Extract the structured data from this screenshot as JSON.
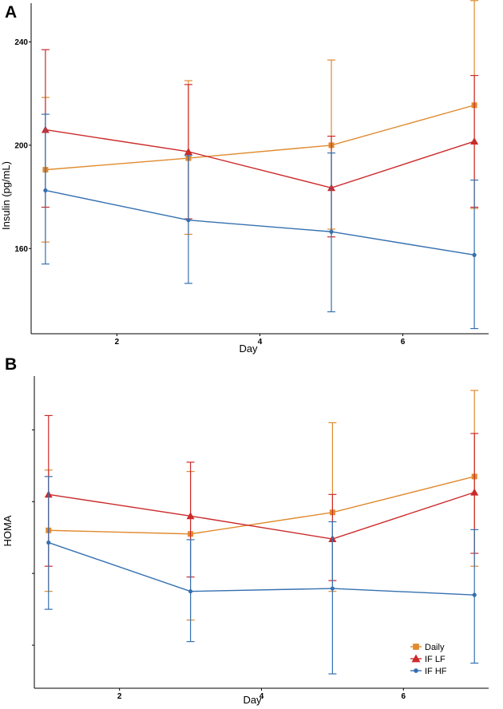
{
  "colors": {
    "Daily": "#e08a2e",
    "IF LF": "#cc2a2a",
    "IF HF": "#3570b0"
  },
  "chart_data": [
    {
      "type": "line",
      "panel_label": "A",
      "xlabel": "Day",
      "ylabel": "Insulin (pg/mL)",
      "xlim": [
        0.8,
        7.2
      ],
      "ylim": [
        127,
        255
      ],
      "xticks": [
        2,
        4,
        6
      ],
      "yticks": [
        160,
        200,
        240
      ],
      "show_ytick_labels": true,
      "legend": false,
      "x": [
        1,
        3,
        5,
        7
      ],
      "series": [
        {
          "name": "Daily",
          "marker": "square",
          "values": [
            190.5,
            195,
            200,
            215.5
          ],
          "err_low": [
            162.5,
            165.5,
            167.5,
            175.5
          ],
          "err_high": [
            218.5,
            225,
            233,
            256
          ]
        },
        {
          "name": "IF LF",
          "marker": "triangle",
          "values": [
            206,
            197.5,
            183.5,
            201.5
          ],
          "err_low": [
            176,
            171.5,
            164.5,
            176
          ],
          "err_high": [
            237,
            223.5,
            203.5,
            227
          ]
        },
        {
          "name": "IF HF",
          "marker": "circle",
          "values": [
            182.5,
            171,
            166.5,
            157.5
          ],
          "err_low": [
            154,
            146.5,
            135.5,
            129
          ],
          "err_high": [
            212,
            196,
            197,
            186.5
          ]
        }
      ]
    },
    {
      "type": "line",
      "panel_label": "B",
      "xlabel": "Day",
      "ylabel": "HOMA",
      "xlim": [
        0.8,
        7.2
      ],
      "ylim": [
        0.2,
        4.55
      ],
      "xticks": [
        2,
        4,
        6
      ],
      "yticks": [
        0.8,
        1.8,
        2.8,
        3.8
      ],
      "show_ytick_labels": false,
      "legend": true,
      "legend_position": "bottom-right",
      "x": [
        1,
        3,
        5,
        7
      ],
      "series": [
        {
          "name": "Daily",
          "marker": "square",
          "values": [
            2.4,
            2.35,
            2.65,
            3.15
          ],
          "err_low": [
            1.55,
            1.15,
            1.55,
            1.9
          ],
          "err_high": [
            3.24,
            3.22,
            3.9,
            4.35
          ]
        },
        {
          "name": "IF LF",
          "marker": "triangle",
          "values": [
            2.9,
            2.6,
            2.28,
            2.93
          ],
          "err_low": [
            1.9,
            1.75,
            1.7,
            2.08
          ],
          "err_high": [
            4.0,
            3.35,
            2.9,
            3.75
          ]
        },
        {
          "name": "IF HF",
          "marker": "circle",
          "values": [
            2.23,
            1.55,
            1.59,
            1.5
          ],
          "err_low": [
            1.3,
            0.85,
            0.4,
            0.55
          ],
          "err_high": [
            3.15,
            2.27,
            2.52,
            2.41
          ]
        }
      ]
    }
  ]
}
